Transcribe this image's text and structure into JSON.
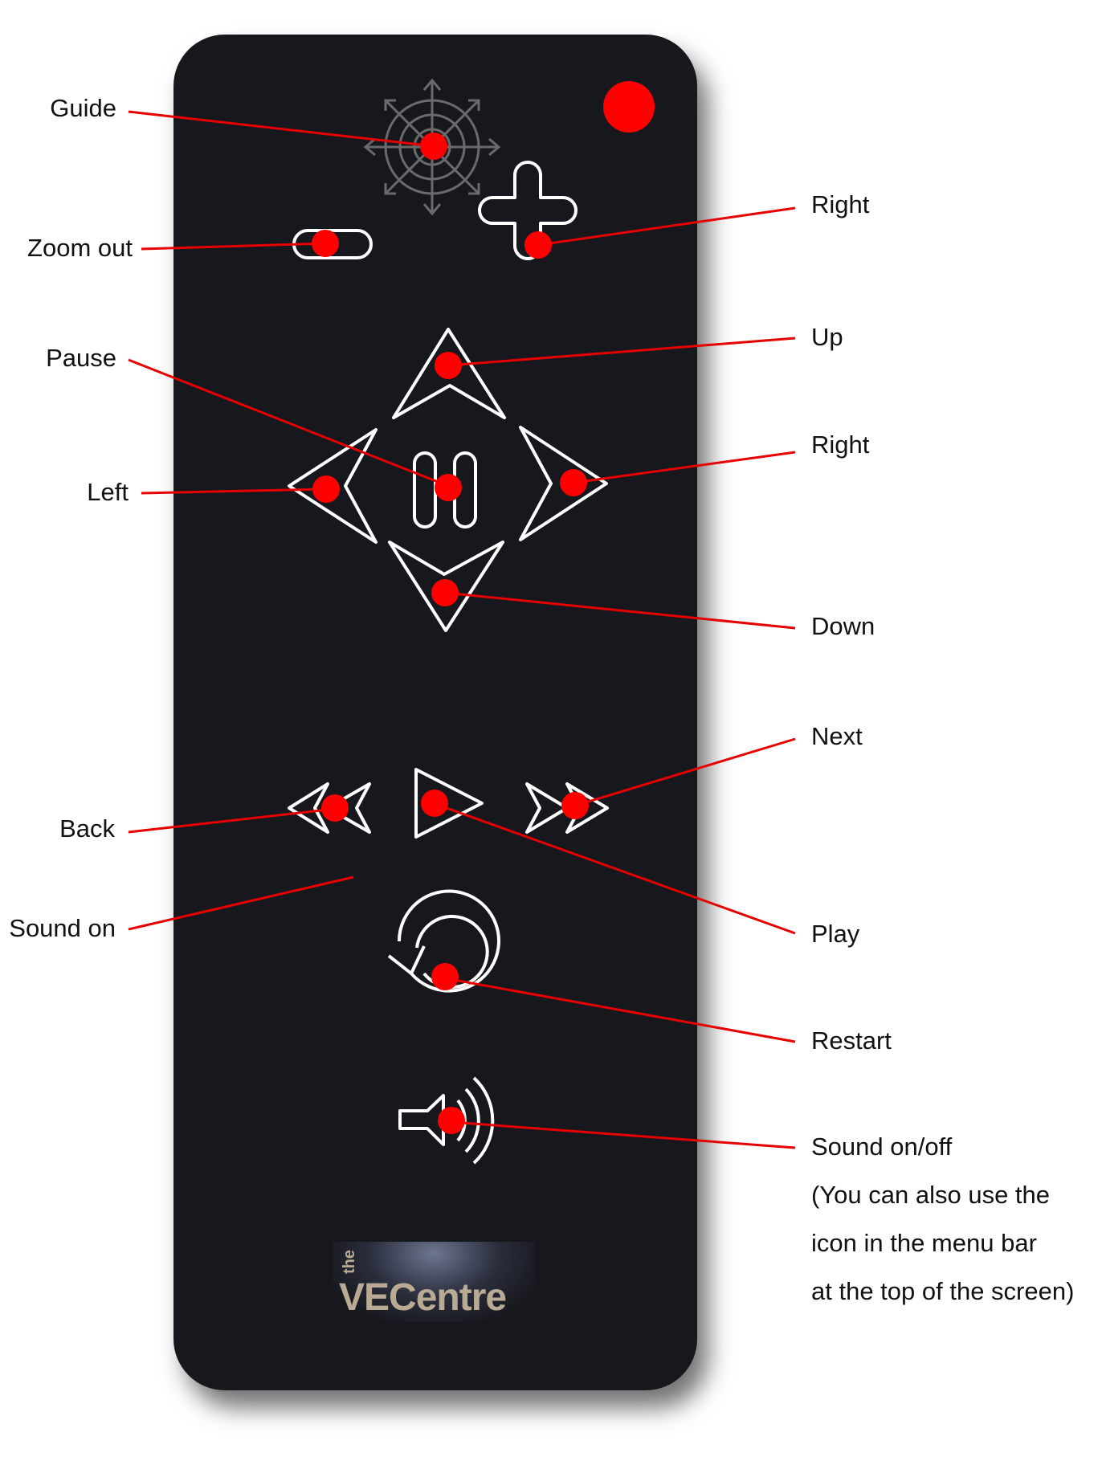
{
  "labels": {
    "guide": "Guide",
    "zoom_out": "Zoom out",
    "zoom_in_right": "Right",
    "pause": "Pause",
    "left": "Left",
    "up": "Up",
    "right": "Right",
    "down": "Down",
    "next": "Next",
    "back": "Back",
    "sound_on": "Sound on",
    "play": "Play",
    "restart": "Restart",
    "sound_onoff": "Sound on/off",
    "sound_note_1": "(You can also use the",
    "sound_note_2": "icon in the menu bar",
    "sound_note_3": "at the top of the screen)"
  },
  "logo": {
    "small": "the",
    "main": "VECentre"
  },
  "icons": {
    "guide": "compass-icon",
    "zoom_out": "minus-icon",
    "zoom_in": "plus-icon",
    "up": "arrow-up-icon",
    "down": "arrow-down-icon",
    "left": "arrow-left-icon",
    "right": "arrow-right-icon",
    "pause": "pause-icon",
    "back": "rewind-icon",
    "play": "play-icon",
    "next": "fast-forward-icon",
    "restart": "restart-icon",
    "sound": "speaker-icon",
    "status": "red-dot-icon"
  },
  "colors": {
    "remote": "#17181d",
    "icon_stroke": "#ffffff",
    "guide_stroke": "#6a6a6a",
    "marker": "#ff0000",
    "leader": "#e60000",
    "logo_text": "#b9ab93"
  }
}
